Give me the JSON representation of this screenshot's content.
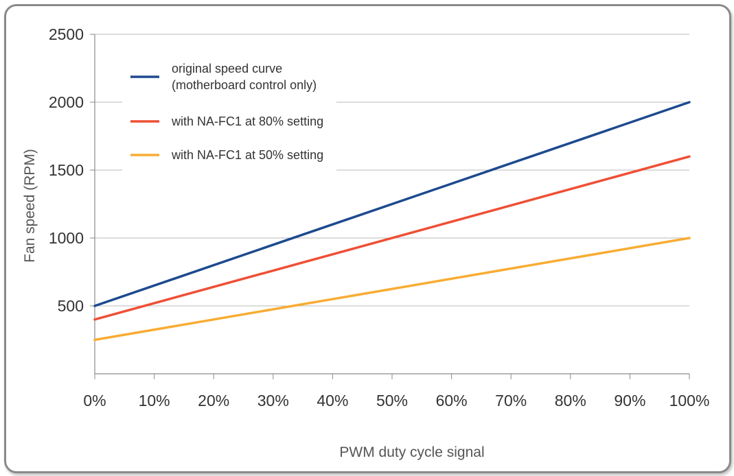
{
  "chart_data": {
    "type": "line",
    "xlabel": "PWM duty cycle signal",
    "ylabel": "Fan speed (RPM)",
    "x": [
      0,
      100
    ],
    "x_tick_labels": [
      "0%",
      "10%",
      "20%",
      "30%",
      "40%",
      "50%",
      "60%",
      "70%",
      "80%",
      "90%",
      "100%"
    ],
    "y_tick_labels": [
      "500",
      "1000",
      "1500",
      "2000",
      "2500"
    ],
    "xlim": [
      0,
      100
    ],
    "ylim": [
      0,
      2500
    ],
    "grid": "horizontal",
    "legend_position": "top-left",
    "series": [
      {
        "name": "original speed curve\n(motherboard control only)",
        "values": [
          500,
          2000
        ],
        "color": "#1d4a8f"
      },
      {
        "name": "with NA-FC1 at 80% setting",
        "values": [
          400,
          1600
        ],
        "color": "#ef4f35"
      },
      {
        "name": "with NA-FC1 at 50% setting",
        "values": [
          250,
          1000
        ],
        "color": "#f8ac33"
      }
    ]
  }
}
